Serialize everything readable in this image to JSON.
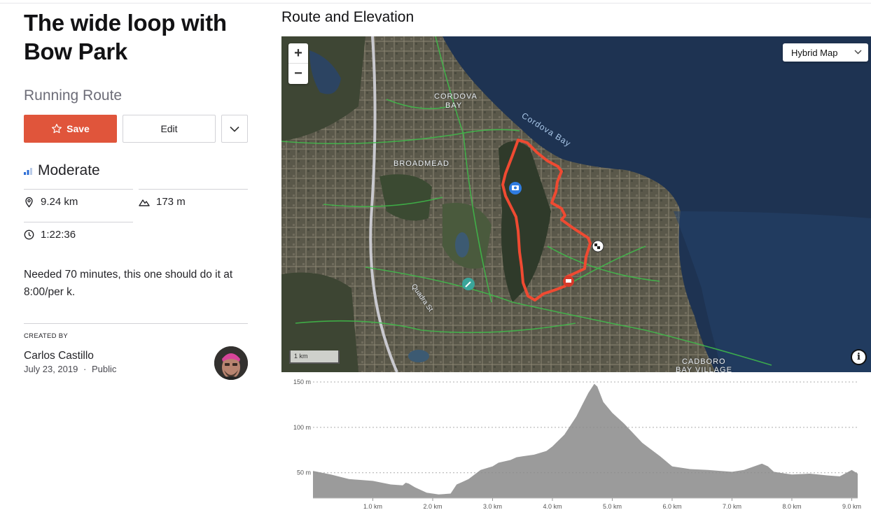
{
  "route": {
    "title": "The wide loop with Bow Park",
    "type": "Running Route",
    "difficulty": "Moderate",
    "distance": "9.24 km",
    "elevation_gain": "173 m",
    "duration": "1:22:36",
    "description": "Needed 70 minutes, this one should do it at 8:00/per k."
  },
  "actions": {
    "save_label": "Save",
    "edit_label": "Edit"
  },
  "creator": {
    "section_label": "CREATED BY",
    "name": "Carlos Castillo",
    "date": "July 23, 2019",
    "separator": "·",
    "visibility": "Public"
  },
  "map": {
    "section_title": "Route and Elevation",
    "zoom_in": "+",
    "zoom_out": "−",
    "map_type": "Hybrid Map",
    "scale_label": "1 km",
    "info_glyph": "i",
    "places": {
      "cordova_1": "CORDOVA",
      "cordova_2": "BAY",
      "broadmead": "BROADMEAD",
      "cadboro_1": "CADBORO",
      "cadboro_2": "BAY VILLAGE",
      "bay": "Cordova Bay",
      "street": "Quadra St"
    },
    "colors": {
      "route": "#ef4a32",
      "water": "#1e3352",
      "trail": "#3fbd4a"
    }
  },
  "chart_data": {
    "type": "area",
    "title": "",
    "xlabel": "",
    "ylabel": "",
    "xlim": [
      0,
      9.1
    ],
    "ylim": [
      22,
      150
    ],
    "x_ticks": [
      "1.0 km",
      "2.0 km",
      "3.0 km",
      "4.0 km",
      "5.0 km",
      "6.0 km",
      "7.0 km",
      "8.0 km",
      "9.0 km"
    ],
    "x_tick_values": [
      1,
      2,
      3,
      4,
      5,
      6,
      7,
      8,
      9
    ],
    "y_ticks": [
      "150 m",
      "100 m",
      "50 m"
    ],
    "y_tick_values": [
      150,
      100,
      50
    ],
    "grid": true,
    "color": "#9b9b9b",
    "x": [
      0,
      0.3,
      0.6,
      1.0,
      1.3,
      1.5,
      1.55,
      1.6,
      1.7,
      1.9,
      2.1,
      2.3,
      2.4,
      2.5,
      2.6,
      2.8,
      3.0,
      3.1,
      3.3,
      3.4,
      3.5,
      3.7,
      3.9,
      4.0,
      4.2,
      4.4,
      4.5,
      4.6,
      4.7,
      4.75,
      4.85,
      5.0,
      5.2,
      5.3,
      5.5,
      5.8,
      6.0,
      6.3,
      6.6,
      6.8,
      7.0,
      7.2,
      7.5,
      7.6,
      7.7,
      7.9,
      8.0,
      8.3,
      8.6,
      8.8,
      9.0,
      9.1
    ],
    "y": [
      52,
      48,
      43,
      41,
      37,
      36,
      39,
      38,
      34,
      28,
      26,
      27,
      37,
      40,
      43,
      53,
      57,
      61,
      64,
      67,
      68,
      70,
      74,
      79,
      92,
      112,
      125,
      138,
      148,
      145,
      128,
      116,
      104,
      97,
      83,
      68,
      57,
      54,
      53,
      52,
      51,
      53,
      60,
      57,
      51,
      49,
      48,
      49,
      47,
      46,
      53,
      49
    ]
  }
}
